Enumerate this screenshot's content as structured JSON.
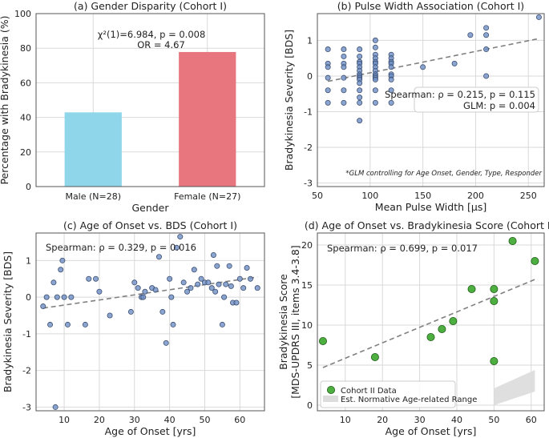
{
  "colors": {
    "grid": "#d9d9d9",
    "axis": "#555555",
    "bar_male": "#8fd6ea",
    "bar_female": "#e8767e",
    "scatter_blue": "#6e8ec4",
    "scatter_blue_edge": "#3b4f72",
    "scatter_green": "#4caf3f",
    "scatter_green_edge": "#1f5a18",
    "trend": "#808080",
    "band": "#dcdcdc"
  },
  "chart_data": [
    {
      "id": "a",
      "type": "bar",
      "title": "(a) Gender Disparity (Cohort I)",
      "xlabel": "Gender",
      "ylabel": "Percentage with Bradykinesia (%)",
      "categories": [
        "Male (N=28)",
        "Female (N=27)"
      ],
      "values": [
        42.9,
        77.8
      ],
      "ylim": [
        0,
        100
      ],
      "yticks": [
        0,
        20,
        40,
        60,
        80,
        100
      ],
      "grid": true,
      "annotation": [
        "χ²(1)=6.984, p = 0.008",
        "OR = 4.67"
      ]
    },
    {
      "id": "b",
      "type": "scatter",
      "title": "(b) Pulse Width Association (Cohort I)",
      "xlabel": "Mean Pulse Width [μs]",
      "ylabel": "Bradykinesia Severity [BDS]",
      "xlim": [
        50,
        265
      ],
      "ylim": [
        -3.1,
        1.75
      ],
      "xticks": [
        50,
        100,
        150,
        200,
        250
      ],
      "yticks": [
        -3,
        -2,
        -1,
        0,
        1
      ],
      "grid": true,
      "points": [
        [
          60,
          0.75
        ],
        [
          60,
          0.35
        ],
        [
          60,
          0.25
        ],
        [
          60,
          -0.05
        ],
        [
          60,
          -0.4
        ],
        [
          60,
          -0.75
        ],
        [
          75,
          0.75
        ],
        [
          75,
          0.55
        ],
        [
          75,
          0.35
        ],
        [
          75,
          0.25
        ],
        [
          75,
          -0.05
        ],
        [
          75,
          -0.4
        ],
        [
          75,
          -0.75
        ],
        [
          90,
          0.75
        ],
        [
          90,
          0.55
        ],
        [
          90,
          0.4
        ],
        [
          90,
          0.35
        ],
        [
          90,
          0.25
        ],
        [
          90,
          0.15
        ],
        [
          90,
          0.05
        ],
        [
          90,
          0
        ],
        [
          90,
          -0.05
        ],
        [
          90,
          -0.1
        ],
        [
          90,
          -0.2
        ],
        [
          90,
          -0.4
        ],
        [
          90,
          -0.6
        ],
        [
          90,
          -0.75
        ],
        [
          90,
          -1.25
        ],
        [
          105,
          1.0
        ],
        [
          105,
          0.8
        ],
        [
          105,
          0.6
        ],
        [
          105,
          0.5
        ],
        [
          105,
          0.4
        ],
        [
          105,
          0.35
        ],
        [
          105,
          0.25
        ],
        [
          105,
          0.15
        ],
        [
          105,
          0.05
        ],
        [
          105,
          0
        ],
        [
          105,
          -0.05
        ],
        [
          105,
          -0.1
        ],
        [
          105,
          -0.4
        ],
        [
          105,
          -0.75
        ],
        [
          120,
          0.6
        ],
        [
          120,
          0.5
        ],
        [
          120,
          0.4
        ],
        [
          120,
          0.35
        ],
        [
          120,
          0.25
        ],
        [
          120,
          0.05
        ],
        [
          120,
          0
        ],
        [
          120,
          -0.1
        ],
        [
          120,
          -0.4
        ],
        [
          120,
          -0.75
        ],
        [
          150,
          0.25
        ],
        [
          180,
          0.35
        ],
        [
          195,
          1.15
        ],
        [
          210,
          1.35
        ],
        [
          210,
          1.15
        ],
        [
          210,
          0.75
        ],
        [
          210,
          0
        ],
        [
          260,
          1.65
        ]
      ],
      "trend": {
        "x": [
          60,
          260
        ],
        "y": [
          -0.15,
          1.05
        ]
      },
      "annotation": [
        "Spearman: ρ = 0.215, p = 0.115",
        "GLM: p = 0.004"
      ],
      "footnote": "*GLM controlling for Age Onset, Gender, Type, Responder"
    },
    {
      "id": "c",
      "type": "scatter",
      "title": "(c) Age of Onset vs. BDS (Cohort I)",
      "xlabel": "Age of Onset [yrs]",
      "ylabel": "Bradykinesia Severity [BDS]",
      "xlim": [
        2,
        67
      ],
      "ylim": [
        -3.1,
        1.75
      ],
      "xticks": [
        10,
        20,
        30,
        40,
        50,
        60
      ],
      "yticks": [
        -3,
        -2,
        -1,
        0,
        1
      ],
      "grid": true,
      "points": [
        [
          4,
          -0.25
        ],
        [
          5,
          0
        ],
        [
          6,
          -0.75
        ],
        [
          7,
          0.4
        ],
        [
          7.5,
          -3.0
        ],
        [
          8,
          0
        ],
        [
          9,
          0.75
        ],
        [
          9.5,
          1.0
        ],
        [
          10,
          0
        ],
        [
          11,
          -0.75
        ],
        [
          12,
          0
        ],
        [
          16,
          -0.75
        ],
        [
          17,
          0.5
        ],
        [
          19,
          0.5
        ],
        [
          20,
          0.15
        ],
        [
          23,
          -0.5
        ],
        [
          29,
          -0.4
        ],
        [
          30,
          0.4
        ],
        [
          31,
          0.25
        ],
        [
          32,
          0
        ],
        [
          32.5,
          0
        ],
        [
          33,
          0.15
        ],
        [
          35,
          0.25
        ],
        [
          36,
          0.2
        ],
        [
          37,
          1.1
        ],
        [
          38,
          -0.4
        ],
        [
          39,
          -1.25
        ],
        [
          40,
          0.5
        ],
        [
          40.5,
          0
        ],
        [
          41,
          -0.75
        ],
        [
          42,
          1.35
        ],
        [
          43,
          1.65
        ],
        [
          44,
          0.4
        ],
        [
          45,
          0.15
        ],
        [
          46,
          0.25
        ],
        [
          47,
          0.75
        ],
        [
          48,
          0.35
        ],
        [
          49,
          0.5
        ],
        [
          50,
          0.4
        ],
        [
          51,
          0.4
        ],
        [
          52,
          0.25
        ],
        [
          52.5,
          1.15
        ],
        [
          53,
          0.15
        ],
        [
          53.5,
          0.85
        ],
        [
          54,
          0.35
        ],
        [
          55,
          -0.75
        ],
        [
          55.5,
          0
        ],
        [
          56,
          0.35
        ],
        [
          57,
          0.85
        ],
        [
          57.5,
          0.3
        ],
        [
          58,
          -0.15
        ],
        [
          59,
          -0.15
        ],
        [
          60,
          0.5
        ],
        [
          61,
          0.25
        ],
        [
          62,
          0.8
        ],
        [
          63,
          0.5
        ],
        [
          65,
          0.25
        ]
      ],
      "trend": {
        "x": [
          4,
          65
        ],
        "y": [
          -0.3,
          0.55
        ]
      },
      "annotation": [
        "Spearman: ρ = 0.329, p = 0.016"
      ]
    },
    {
      "id": "d",
      "type": "scatter",
      "title": "(d) Age of Onset vs. Bradykinesia Score (Cohort II)",
      "xlabel": "Age of Onset [yrs]",
      "ylabel": "Bradykinesia Score",
      "ylabel2": "[MDS-UPDRS III, items 3.4-3.8]",
      "xlim": [
        2.5,
        63.5
      ],
      "ylim": [
        -0.7,
        21.5
      ],
      "xticks": [
        10,
        20,
        30,
        40,
        50,
        60
      ],
      "yticks": [
        0,
        5,
        10,
        15,
        20
      ],
      "grid": true,
      "points": [
        [
          4,
          8
        ],
        [
          18,
          6
        ],
        [
          33,
          8.5
        ],
        [
          36,
          9.5
        ],
        [
          39,
          10.5
        ],
        [
          44,
          14.5
        ],
        [
          50,
          14.5
        ],
        [
          50,
          13
        ],
        [
          50,
          5.5
        ],
        [
          55,
          20.5
        ],
        [
          61,
          18
        ]
      ],
      "trend": {
        "x": [
          4,
          61
        ],
        "y": [
          4.7,
          15.7
        ]
      },
      "band": {
        "x": [
          50,
          61
        ],
        "lower": [
          0,
          1.7
        ],
        "upper": [
          2.1,
          4.4
        ]
      },
      "annotation": [
        "Spearman: ρ = 0.699, p = 0.017"
      ],
      "legend": [
        "Cohort II Data",
        "Est. Normative Age-related Range"
      ]
    }
  ]
}
